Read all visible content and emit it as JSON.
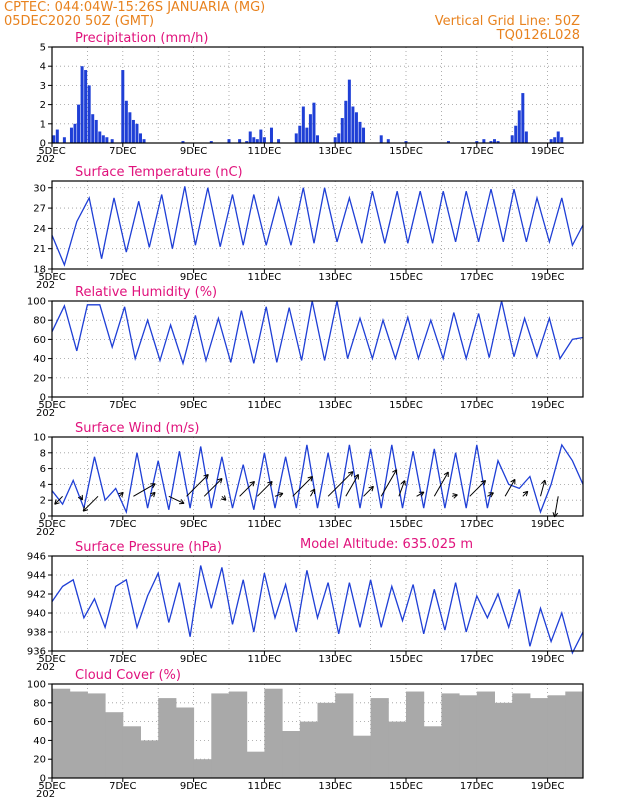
{
  "header": {
    "line1": "CPTEC:   044:04W-15:26S   JANUARIA (MG)",
    "line2": "05DEC2020 50Z (GMT)",
    "grid_note": "Vertical Grid Line: 50Z",
    "code": "TQ0126L028"
  },
  "model_altitude": "Model Altitude: 635.025 m",
  "colors": {
    "header": "#e8821e",
    "title": "#e0127c",
    "line": "#1f3fd6",
    "bar": "#1f3fd6",
    "cloud": "#a9a9a9",
    "grid": "#9a9a9a"
  },
  "x_axis": {
    "labels": [
      "5DEC",
      "7DEC",
      "9DEC",
      "11DEC",
      "13DEC",
      "15DEC",
      "17DEC",
      "19DEC"
    ],
    "label_days": [
      0,
      2,
      4,
      6,
      8,
      10,
      12,
      14
    ],
    "sub_label": "202",
    "range_days": [
      0,
      15
    ]
  },
  "chart_data": [
    {
      "type": "bar",
      "title": "Precipitation (mm/h)",
      "ylim": [
        0,
        5
      ],
      "yticks": [
        0,
        1,
        2,
        3,
        4,
        5
      ],
      "grid": true,
      "x": [
        0.05,
        0.15,
        0.35,
        0.55,
        0.65,
        0.75,
        0.85,
        0.95,
        1.05,
        1.15,
        1.25,
        1.35,
        1.45,
        1.55,
        1.7,
        2.0,
        2.1,
        2.2,
        2.3,
        2.4,
        2.5,
        2.6,
        3.7,
        4.5,
        5.0,
        5.3,
        5.5,
        5.6,
        5.7,
        5.8,
        5.9,
        6.0,
        6.2,
        6.4,
        6.9,
        7.0,
        7.1,
        7.2,
        7.3,
        7.4,
        7.5,
        8.0,
        8.1,
        8.2,
        8.3,
        8.4,
        8.5,
        8.6,
        8.7,
        8.8,
        9.3,
        9.5,
        10.0,
        11.2,
        12.0,
        12.2,
        12.4,
        12.5,
        12.6,
        13.0,
        13.1,
        13.2,
        13.3,
        13.4,
        14.1,
        14.2,
        14.3,
        14.4
      ],
      "values": [
        0.4,
        0.7,
        0.3,
        0.8,
        1.0,
        2.0,
        4.0,
        3.8,
        3.0,
        1.5,
        1.2,
        0.6,
        0.4,
        0.3,
        0.2,
        3.8,
        2.2,
        1.6,
        1.2,
        1.0,
        0.5,
        0.2,
        0.1,
        0.1,
        0.2,
        0.2,
        0.1,
        0.6,
        0.3,
        0.2,
        0.7,
        0.3,
        0.8,
        0.2,
        0.5,
        0.9,
        1.9,
        0.8,
        1.5,
        2.1,
        0.4,
        0.3,
        0.5,
        1.3,
        2.2,
        3.3,
        1.9,
        1.6,
        1.1,
        0.8,
        0.4,
        0.2,
        0.1,
        0.1,
        0.1,
        0.2,
        0.1,
        0.2,
        0.1,
        0.4,
        0.9,
        1.7,
        2.6,
        0.6,
        0.2,
        0.3,
        0.6,
        0.3
      ]
    },
    {
      "type": "line",
      "title": "Surface Temperature (nC)",
      "ylim": [
        18,
        31
      ],
      "yticks": [
        18,
        21,
        24,
        27,
        30
      ],
      "grid": true,
      "x": [
        0,
        0.35,
        0.7,
        1.05,
        1.4,
        1.75,
        2.1,
        2.45,
        2.75,
        3.1,
        3.4,
        3.75,
        4.05,
        4.4,
        4.75,
        5.1,
        5.4,
        5.7,
        6.05,
        6.4,
        6.75,
        7.1,
        7.4,
        7.7,
        8.05,
        8.4,
        8.75,
        9.05,
        9.4,
        9.75,
        10.05,
        10.4,
        10.75,
        11.05,
        11.4,
        11.7,
        12.05,
        12.4,
        12.75,
        13.05,
        13.4,
        13.7,
        14.05,
        14.4,
        14.7,
        15
      ],
      "values": [
        23,
        18.6,
        25,
        28.5,
        19.5,
        28.5,
        20.5,
        28,
        21.2,
        29,
        21,
        30.2,
        21.5,
        30,
        21.3,
        29,
        21.5,
        29,
        21.5,
        28.5,
        21.5,
        30,
        21.8,
        30,
        22,
        28.5,
        21.8,
        29.5,
        21.8,
        29.5,
        21.8,
        29.5,
        21.8,
        29.5,
        22,
        29.5,
        22,
        29.8,
        22,
        29.8,
        22,
        28.5,
        22,
        28.5,
        21.5,
        24.5
      ]
    },
    {
      "type": "line",
      "title": "Relative Humidity (%)",
      "ylim": [
        0,
        100
      ],
      "yticks": [
        0,
        20,
        40,
        60,
        80,
        100
      ],
      "grid": true,
      "x": [
        0,
        0.35,
        0.7,
        1.0,
        1.35,
        1.7,
        2.05,
        2.35,
        2.7,
        3.05,
        3.35,
        3.7,
        4.05,
        4.35,
        4.7,
        5.05,
        5.35,
        5.7,
        6.05,
        6.35,
        6.7,
        7.05,
        7.35,
        7.7,
        8.05,
        8.35,
        8.7,
        9.05,
        9.35,
        9.7,
        10.05,
        10.35,
        10.7,
        11.05,
        11.35,
        11.7,
        12.05,
        12.35,
        12.7,
        13.05,
        13.35,
        13.7,
        14.05,
        14.35,
        14.7,
        15
      ],
      "values": [
        68,
        95,
        48,
        96,
        96,
        52,
        94,
        40,
        80,
        38,
        75,
        35,
        85,
        38,
        82,
        36,
        90,
        35,
        94,
        36,
        93,
        38,
        100,
        38,
        100,
        40,
        82,
        40,
        80,
        40,
        83,
        40,
        80,
        40,
        88,
        40,
        87,
        41,
        100,
        42,
        82,
        42,
        82,
        40,
        60,
        62
      ]
    },
    {
      "type": "line",
      "title": "Surface Wind (m/s)",
      "ylim": [
        0,
        10
      ],
      "yticks": [
        0,
        2,
        4,
        6,
        8,
        10
      ],
      "grid": true,
      "x": [
        0,
        0.3,
        0.6,
        0.9,
        1.2,
        1.5,
        1.8,
        2.1,
        2.4,
        2.7,
        3.0,
        3.3,
        3.6,
        3.9,
        4.2,
        4.5,
        4.8,
        5.1,
        5.4,
        5.7,
        6.0,
        6.3,
        6.6,
        6.9,
        7.2,
        7.5,
        7.8,
        8.1,
        8.4,
        8.7,
        9.0,
        9.3,
        9.6,
        9.9,
        10.2,
        10.5,
        10.8,
        11.1,
        11.4,
        11.7,
        12.0,
        12.3,
        12.6,
        12.9,
        13.2,
        13.5,
        13.8,
        14.1,
        14.4,
        14.7,
        15
      ],
      "values": [
        3.2,
        1.5,
        4.5,
        1,
        7.5,
        2,
        3.5,
        0.5,
        8,
        1,
        7,
        0.8,
        8.2,
        1,
        8.8,
        1,
        7.5,
        1,
        6.5,
        0.8,
        8,
        1,
        7.5,
        1,
        9,
        1,
        8,
        1,
        9,
        1,
        8.5,
        1,
        9,
        1,
        8.2,
        1,
        8.5,
        1,
        8,
        1,
        9,
        1,
        7,
        4,
        3.5,
        5,
        0.5,
        4,
        9,
        7,
        4
      ]
    },
    {
      "type": "line",
      "title": "Surface Pressure (hPa)",
      "ylim": [
        936,
        946
      ],
      "yticks": [
        936,
        938,
        940,
        942,
        944,
        946
      ],
      "grid": true,
      "x": [
        0,
        0.3,
        0.6,
        0.9,
        1.2,
        1.5,
        1.8,
        2.1,
        2.4,
        2.7,
        3.0,
        3.3,
        3.6,
        3.9,
        4.2,
        4.5,
        4.8,
        5.1,
        5.4,
        5.7,
        6.0,
        6.3,
        6.6,
        6.9,
        7.2,
        7.5,
        7.8,
        8.1,
        8.4,
        8.7,
        9.0,
        9.3,
        9.6,
        9.9,
        10.2,
        10.5,
        10.8,
        11.1,
        11.4,
        11.7,
        12.0,
        12.3,
        12.6,
        12.9,
        13.2,
        13.5,
        13.8,
        14.1,
        14.4,
        14.7,
        15
      ],
      "values": [
        941.2,
        942.8,
        943.5,
        939.5,
        941.5,
        938.5,
        942.8,
        943.5,
        938.5,
        941.8,
        944.2,
        939,
        943.2,
        937.5,
        945,
        940.5,
        944.8,
        938.8,
        943.5,
        938,
        944.2,
        939.5,
        943,
        938,
        944.5,
        939.5,
        943.2,
        937.8,
        943.2,
        938.5,
        943.5,
        938.5,
        942.8,
        939.2,
        943,
        937.8,
        942.5,
        938.2,
        943.2,
        938,
        941.8,
        939.5,
        942,
        938.5,
        942.5,
        936.5,
        940.5,
        937,
        940,
        935.8,
        938
      ]
    },
    {
      "type": "bar",
      "title": "Cloud Cover (%)",
      "ylim": [
        0,
        100
      ],
      "yticks": [
        0,
        20,
        40,
        60,
        80,
        100
      ],
      "grid": true,
      "x": [
        0,
        0.5,
        1.0,
        1.5,
        2.0,
        2.5,
        3.0,
        3.5,
        4.0,
        4.5,
        5.0,
        5.5,
        6.0,
        6.5,
        7.0,
        7.5,
        8.0,
        8.5,
        9.0,
        9.5,
        10.0,
        10.5,
        11.0,
        11.5,
        12.0,
        12.5,
        13.0,
        13.5,
        14.0,
        14.5
      ],
      "values": [
        95,
        92,
        90,
        70,
        55,
        40,
        85,
        75,
        20,
        90,
        92,
        28,
        95,
        50,
        60,
        80,
        90,
        45,
        85,
        60,
        92,
        55,
        90,
        88,
        92,
        80,
        90,
        85,
        88,
        92
      ]
    }
  ],
  "wind_vectors": {
    "x": [
      0.3,
      0.8,
      1.3,
      1.9,
      2.3,
      2.8,
      3.3,
      3.8,
      4.3,
      4.8,
      5.3,
      5.8,
      6.3,
      6.8,
      7.3,
      7.8,
      8.3,
      8.8,
      9.3,
      9.8,
      10.3,
      10.8,
      11.3,
      11.8,
      12.3,
      12.8,
      13.3,
      13.8,
      14.3
    ],
    "dir_deg": [
      225,
      300,
      225,
      45,
      30,
      45,
      335,
      45,
      45,
      315,
      45,
      45,
      20,
      45,
      60,
      45,
      60,
      45,
      60,
      70,
      30,
      60,
      15,
      45,
      30,
      60,
      45,
      75,
      260
    ],
    "len": [
      0.8,
      0.3,
      1.5,
      0.4,
      1.8,
      0.4,
      1.2,
      2.2,
      1.8,
      0.4,
      1.5,
      1.5,
      0.6,
      2.0,
      0.6,
      2.5,
      1.8,
      1.0,
      2.2,
      1.2,
      0.6,
      2.0,
      0.4,
      1.6,
      0.5,
      1.4,
      0.5,
      1.2,
      1.5
    ]
  }
}
